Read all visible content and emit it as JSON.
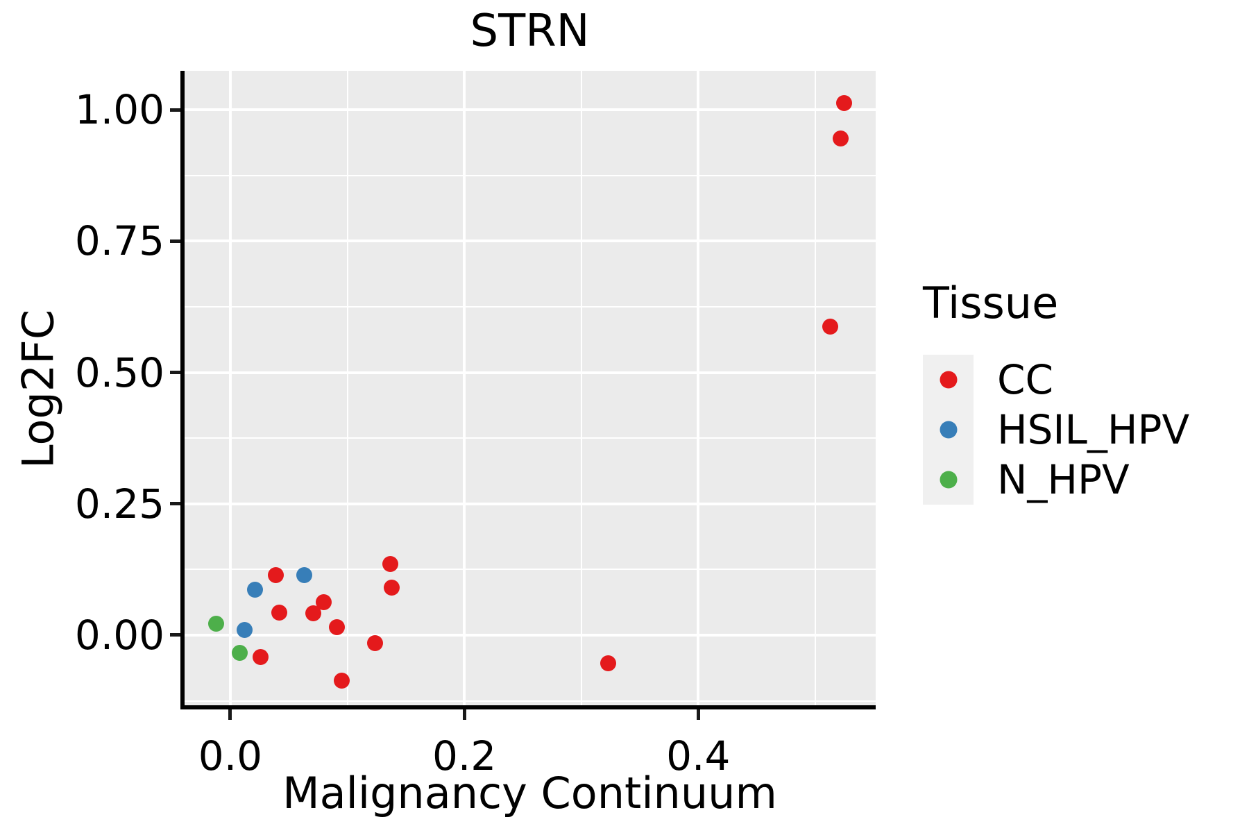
{
  "chart_data": {
    "type": "scatter",
    "title": "STRN",
    "xlabel": "Malignancy Continuum",
    "ylabel": "Log2FC",
    "xlim": [
      -0.0397,
      0.5517
    ],
    "ylim": [
      -0.1361,
      1.0742
    ],
    "grid": {
      "show_major": true,
      "show_minor": true,
      "gridline_color": "#FFFFFF",
      "panel_background": "#EBEBEB"
    },
    "x_ticks": [
      {
        "value": 0.0,
        "label": "0.0"
      },
      {
        "value": 0.2,
        "label": "0.2"
      },
      {
        "value": 0.4,
        "label": "0.4"
      }
    ],
    "y_ticks": [
      {
        "value": 0.0,
        "label": "0.00"
      },
      {
        "value": 0.25,
        "label": "0.25"
      },
      {
        "value": 0.5,
        "label": "0.50"
      },
      {
        "value": 0.75,
        "label": "0.75"
      },
      {
        "value": 1.0,
        "label": "1.00"
      }
    ],
    "legend": {
      "title": "Tissue",
      "position": "right",
      "entries": [
        {
          "label": "CC",
          "color": "#E41A1C"
        },
        {
          "label": "HSIL_HPV",
          "color": "#377EB8"
        },
        {
          "label": "N_HPV",
          "color": "#4DAF4A"
        }
      ]
    },
    "series": [
      {
        "name": "CC",
        "color": "#E41A1C",
        "points": [
          [
            0.026,
            -0.041
          ],
          [
            0.039,
            0.114
          ],
          [
            0.042,
            0.043
          ],
          [
            0.071,
            0.042
          ],
          [
            0.08,
            0.063
          ],
          [
            0.091,
            0.015
          ],
          [
            0.095,
            -0.086
          ],
          [
            0.124,
            -0.015
          ],
          [
            0.137,
            0.136
          ],
          [
            0.138,
            0.09
          ],
          [
            0.323,
            -0.053
          ],
          [
            0.513,
            0.587
          ],
          [
            0.522,
            0.945
          ],
          [
            0.525,
            1.013
          ]
        ]
      },
      {
        "name": "HSIL_HPV",
        "color": "#377EB8",
        "points": [
          [
            0.012,
            0.01
          ],
          [
            0.021,
            0.087
          ],
          [
            0.063,
            0.114
          ]
        ]
      },
      {
        "name": "N_HPV",
        "color": "#4DAF4A",
        "points": [
          [
            -0.012,
            0.022
          ],
          [
            0.008,
            -0.034
          ]
        ]
      }
    ]
  }
}
